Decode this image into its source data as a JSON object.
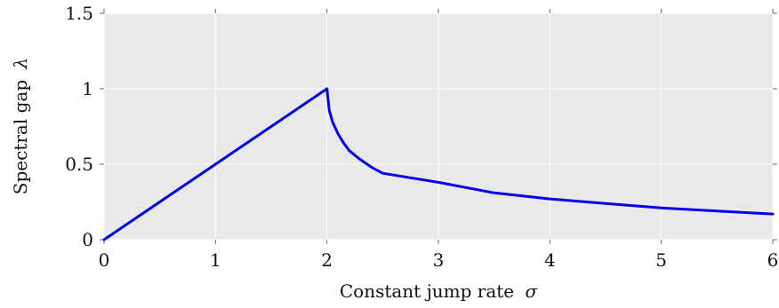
{
  "chart_data": {
    "type": "line",
    "xlabel": "Constant jump rate",
    "xlabel_symbol": "σ",
    "ylabel": "Spectral gap",
    "ylabel_symbol": "λ",
    "xlim": [
      0,
      6
    ],
    "ylim": [
      0,
      1.5
    ],
    "x_ticks": [
      0,
      1,
      2,
      3,
      4,
      5,
      6
    ],
    "x_tick_labels": [
      "0",
      "1",
      "2",
      "3",
      "4",
      "5",
      "6"
    ],
    "y_ticks": [
      0,
      0.5,
      1,
      1.5
    ],
    "y_tick_labels": [
      "0",
      "0.5",
      "1",
      "1.5"
    ],
    "grid": true,
    "series": [
      {
        "color": "#0000ee",
        "x": [
          0,
          0.5,
          1.0,
          1.5,
          2.0,
          2.02,
          2.05,
          2.1,
          2.15,
          2.2,
          2.3,
          2.4,
          2.5,
          2.75,
          3.0,
          3.5,
          4.0,
          4.5,
          5.0,
          5.5,
          6.0
        ],
        "y": [
          0,
          0.25,
          0.5,
          0.75,
          1.0,
          0.86,
          0.78,
          0.7,
          0.64,
          0.59,
          0.53,
          0.48,
          0.44,
          0.41,
          0.38,
          0.31,
          0.27,
          0.24,
          0.21,
          0.19,
          0.17
        ]
      }
    ]
  }
}
